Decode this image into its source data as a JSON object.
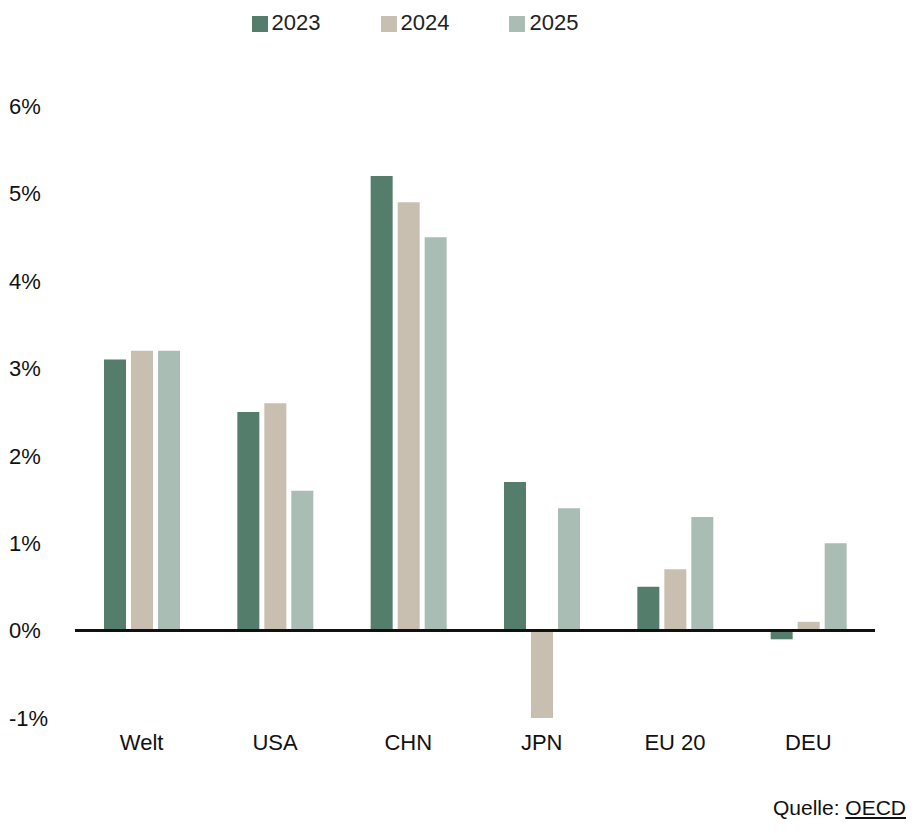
{
  "chart_data": {
    "type": "bar",
    "categories": [
      "Welt",
      "USA",
      "CHN",
      "JPN",
      "EU 20",
      "DEU"
    ],
    "series": [
      {
        "name": "2023",
        "color": "#557d6c",
        "values": [
          3.1,
          2.5,
          5.2,
          1.7,
          0.5,
          -0.1
        ]
      },
      {
        "name": "2024",
        "color": "#c8bfb1",
        "values": [
          3.2,
          2.6,
          4.9,
          -1.0,
          0.7,
          0.1
        ]
      },
      {
        "name": "2025",
        "color": "#aabdb5",
        "values": [
          3.2,
          1.6,
          4.5,
          1.4,
          1.3,
          1.0
        ]
      }
    ],
    "ylim": [
      -1,
      6
    ],
    "yticks": [
      {
        "value": -1,
        "label": "-1%"
      },
      {
        "value": 0,
        "label": "0%"
      },
      {
        "value": 1,
        "label": "1%"
      },
      {
        "value": 2,
        "label": "2%"
      },
      {
        "value": 3,
        "label": "3%"
      },
      {
        "value": 4,
        "label": "4%"
      },
      {
        "value": 5,
        "label": "5%"
      },
      {
        "value": 6,
        "label": "6%"
      }
    ],
    "grid": false,
    "legend": "top",
    "annotations": [
      "Quelle: OECD"
    ]
  }
}
